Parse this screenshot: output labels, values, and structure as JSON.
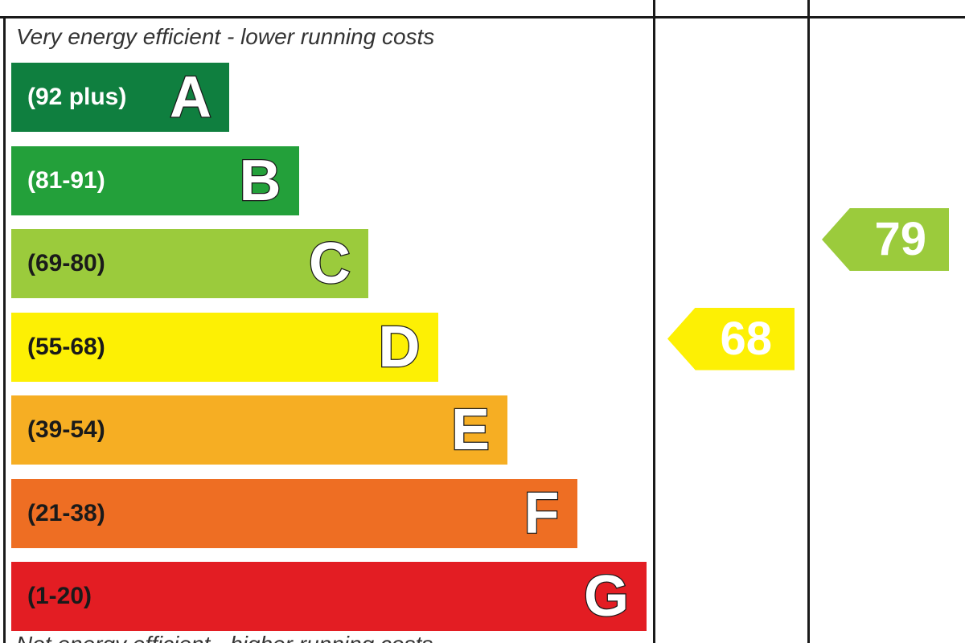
{
  "chart_data": {
    "type": "bar",
    "top_caption": "Very energy efficient - lower running costs",
    "bottom_caption": "Not energy efficient - higher running costs",
    "bands": [
      {
        "letter": "A",
        "range": "(92 plus)",
        "min": 92,
        "max": 100,
        "color": "#0f7f3f",
        "range_color": "#ffffff"
      },
      {
        "letter": "B",
        "range": "(81-91)",
        "min": 81,
        "max": 91,
        "color": "#23a03a",
        "range_color": "#ffffff"
      },
      {
        "letter": "C",
        "range": "(69-80)",
        "min": 69,
        "max": 80,
        "color": "#9bcb3c",
        "range_color": "#1a1a1a"
      },
      {
        "letter": "D",
        "range": "(55-68)",
        "min": 55,
        "max": 68,
        "color": "#fdf004",
        "range_color": "#1a1a1a"
      },
      {
        "letter": "E",
        "range": "(39-54)",
        "min": 39,
        "max": 54,
        "color": "#f6ae23",
        "range_color": "#1a1a1a"
      },
      {
        "letter": "F",
        "range": "(21-38)",
        "min": 21,
        "max": 38,
        "color": "#ee6e23",
        "range_color": "#1a1a1a"
      },
      {
        "letter": "G",
        "range": "(1-20)",
        "min": 1,
        "max": 20,
        "color": "#e31d23",
        "range_color": "#1a1a1a"
      }
    ],
    "ratings": [
      {
        "value": "68",
        "band": "D",
        "color": "#fdf004"
      },
      {
        "value": "79",
        "band": "C",
        "color": "#9bcb3c"
      }
    ]
  }
}
